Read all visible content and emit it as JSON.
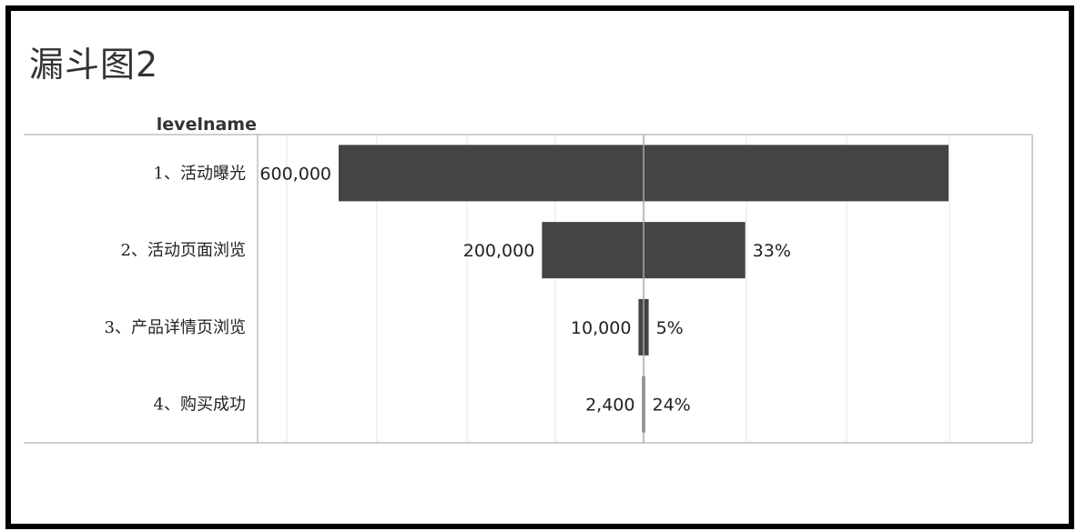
{
  "title": "漏斗图2",
  "chart_data": {
    "type": "bar",
    "subtype": "funnel",
    "row_header": "levelname",
    "categories": [
      "1、活动曝光",
      "2、活动页面浏览",
      "3、产品详情页浏览",
      "4、购买成功"
    ],
    "values": [
      600000,
      200000,
      10000,
      2400
    ],
    "value_labels": [
      "600,000",
      "200,000",
      "10,000",
      "2,400"
    ],
    "conversion_labels": [
      "",
      "33%",
      "5%",
      "24%"
    ],
    "xlim": [
      -600000,
      600000
    ],
    "grid": true,
    "bar_color": "#444444"
  }
}
